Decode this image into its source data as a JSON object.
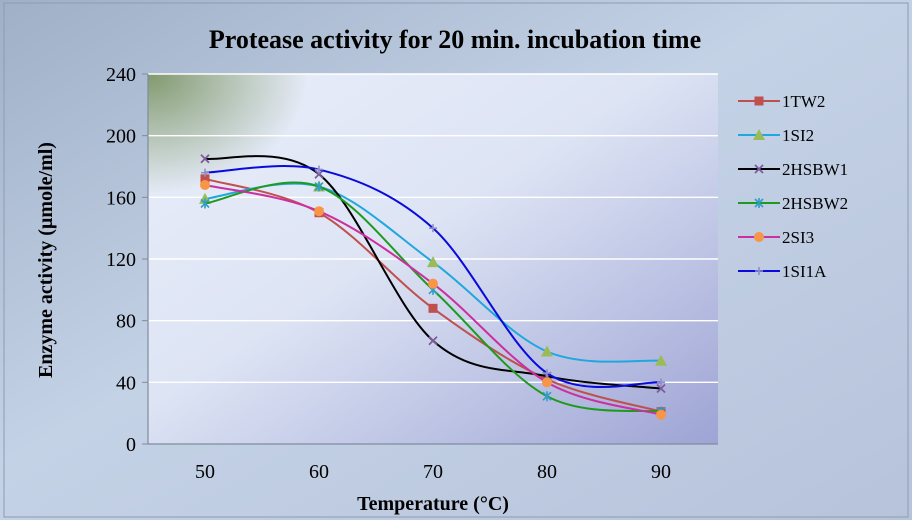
{
  "chart_data": {
    "type": "line",
    "title": "Protease activity for 20 min. incubation time",
    "xlabel": "Temperature (°C)",
    "ylabel": "Enzyme activity (µmole/ml)",
    "x": [
      50,
      60,
      70,
      80,
      90
    ],
    "xlim": [
      45,
      95
    ],
    "ylim": [
      0,
      240
    ],
    "yticks": [
      0,
      40,
      80,
      120,
      160,
      200,
      240
    ],
    "grid": true,
    "legend_position": "right",
    "series": [
      {
        "name": "1TW2",
        "values": [
          172,
          150,
          88,
          42,
          21
        ],
        "color": "#C0504D",
        "marker": "square"
      },
      {
        "name": "1SI2",
        "values": [
          159,
          167,
          118,
          60,
          54
        ],
        "color": "#1FA7DF",
        "marker": "triangle"
      },
      {
        "name": "2HSBW1",
        "values": [
          185,
          175,
          67,
          44,
          36
        ],
        "color": "#000000",
        "marker": "x"
      },
      {
        "name": "2HSBW2",
        "values": [
          156,
          167,
          100,
          31,
          21
        ],
        "color": "#1E9A1E",
        "marker": "star"
      },
      {
        "name": "2SI3",
        "values": [
          168,
          151,
          104,
          40,
          19
        ],
        "color": "#CC2FA0",
        "marker": "circle"
      },
      {
        "name": "1SI1A",
        "values": [
          176,
          178,
          140,
          46,
          40
        ],
        "color": "#0A0ADC",
        "marker": "plus"
      }
    ]
  }
}
